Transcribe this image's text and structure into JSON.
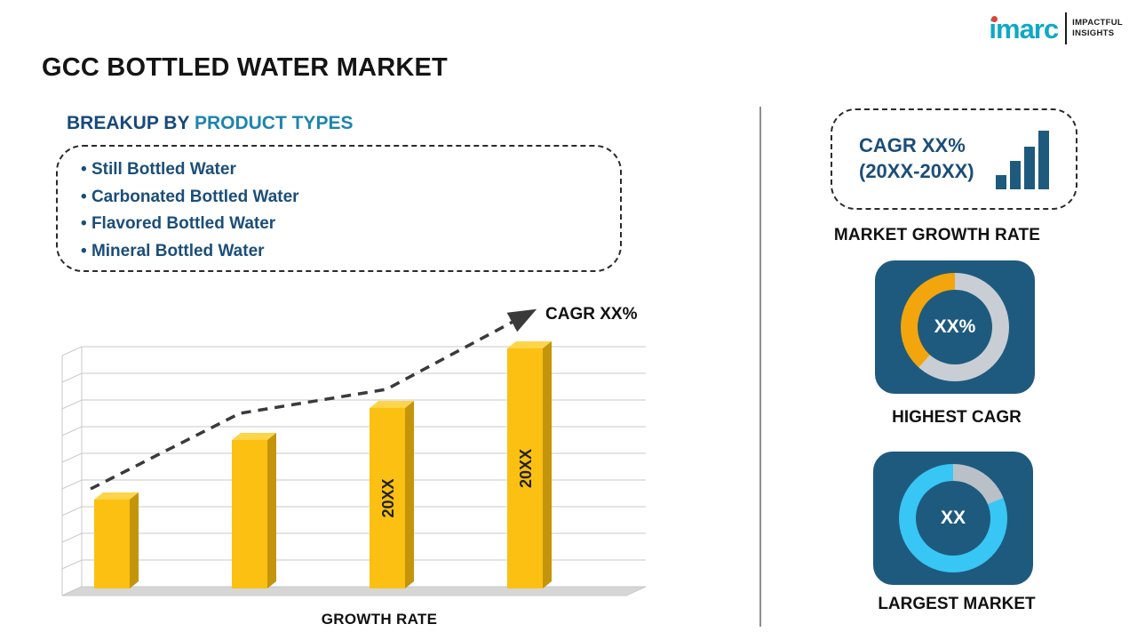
{
  "title": "GCC BOTTLED WATER MARKET",
  "logo": {
    "brand": "imarc",
    "tagline_line1": "IMPACTFUL",
    "tagline_line2": "INSIGHTS"
  },
  "breakup": {
    "heading_prefix": "BREAKUP BY ",
    "heading_highlight": "PRODUCT TYPES",
    "items": [
      "Still Bottled Water",
      "Carbonated Bottled Water",
      "Flavored Bottled Water",
      "Mineral Bottled Water"
    ]
  },
  "chart_data": {
    "type": "bar",
    "categories": [
      "",
      "",
      "20XX",
      "20XX"
    ],
    "values": [
      37,
      62,
      75,
      100
    ],
    "values_unit": "relative-percent-of-max (no numeric axis shown)",
    "title": "",
    "xlabel": "GROWTH RATE",
    "ylabel": "",
    "ylim": [
      0,
      100
    ],
    "grid": true,
    "gridline_count": 10,
    "legend": "none",
    "bar_color": "#FBC011",
    "bar_side_color": "#C4950A",
    "bar_top_color": "#FDD44A",
    "trend": {
      "type": "dashed-arrow",
      "label": "CAGR XX%"
    }
  },
  "right_panel": {
    "cagr_box": {
      "line1": "CAGR XX%",
      "line2": "(20XX-20XX)"
    },
    "market_growth_rate_label": "MARKET GROWTH RATE",
    "tiles": [
      {
        "caption": "HIGHEST CAGR",
        "center_text": "XX%",
        "base_color": "#C9CED4",
        "accent_color": "#F2A50C",
        "accent_start_deg": 222,
        "accent_end_deg": 360
      },
      {
        "caption": "LARGEST MARKET",
        "center_text": "XX",
        "base_color": "#38C6F4",
        "accent_color": "#B9C0C7",
        "accent_start_deg": 0,
        "accent_end_deg": 68
      }
    ]
  },
  "colors": {
    "navy_tile": "#1E5A7E",
    "navy_text": "#1B4E79",
    "teal_heading": "#1D85AD",
    "brand_teal": "#10A8C6",
    "bar_yellow": "#FBC011",
    "donut_cyan": "#38C6F4",
    "donut_orange": "#F2A50C"
  }
}
